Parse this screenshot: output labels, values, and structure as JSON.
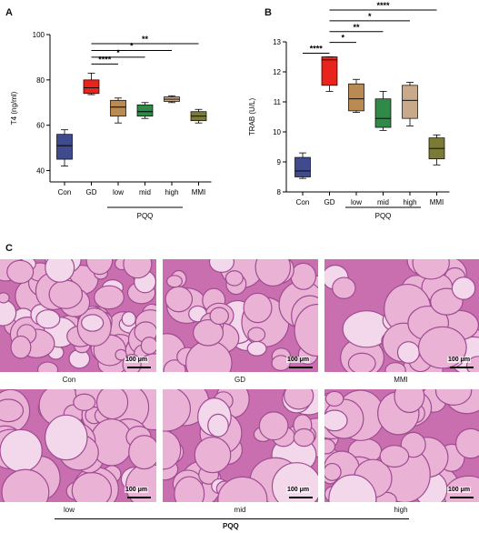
{
  "panels": {
    "a": "A",
    "b": "B",
    "c": "C"
  },
  "chart_data": [
    {
      "type": "box",
      "ylabel": "T4 (ng/ml)",
      "ylim": [
        35,
        100
      ],
      "yticks": [
        40,
        60,
        80,
        100
      ],
      "categories": [
        "Con",
        "GD",
        "low",
        "mid",
        "high",
        "MMI"
      ],
      "group_label": "PQQ",
      "boxes": [
        {
          "name": "Con",
          "min": 42,
          "q1": 45,
          "median": 51,
          "q3": 56,
          "max": 58,
          "color": "#3f4b8c"
        },
        {
          "name": "GD",
          "min": 73.5,
          "q1": 74,
          "median": 76.5,
          "q3": 80,
          "max": 83,
          "color": "#e8241c"
        },
        {
          "name": "low",
          "min": 61,
          "q1": 64,
          "median": 68,
          "q3": 71,
          "max": 72,
          "color": "#b98b53"
        },
        {
          "name": "mid",
          "min": 63,
          "q1": 64,
          "median": 66,
          "q3": 69,
          "max": 70,
          "color": "#2e8a46"
        },
        {
          "name": "high",
          "min": 70,
          "q1": 70.5,
          "median": 71.5,
          "q3": 72.5,
          "max": 73,
          "color": "#c8a98a"
        },
        {
          "name": "MMI",
          "min": 61,
          "q1": 62,
          "median": 64,
          "q3": 66,
          "max": 67,
          "color": "#7b7a36"
        }
      ],
      "significance": [
        {
          "from": "GD",
          "to": "low",
          "y": 87,
          "label": "****"
        },
        {
          "from": "GD",
          "to": "mid",
          "y": 90,
          "label": "*"
        },
        {
          "from": "GD",
          "to": "high",
          "y": 93,
          "label": "*"
        },
        {
          "from": "GD",
          "to": "MMI",
          "y": 96,
          "label": "**"
        }
      ]
    },
    {
      "type": "box",
      "ylabel": "TRAB (U/L)",
      "ylim": [
        8,
        13
      ],
      "yticks": [
        8,
        9,
        10,
        11,
        12,
        13
      ],
      "categories": [
        "Con",
        "GD",
        "low",
        "mid",
        "high",
        "MMI"
      ],
      "group_label": "PQQ",
      "boxes": [
        {
          "name": "Con",
          "min": 8.45,
          "q1": 8.5,
          "median": 8.7,
          "q3": 9.15,
          "max": 9.3,
          "color": "#3f4b8c"
        },
        {
          "name": "GD",
          "min": 11.35,
          "q1": 11.55,
          "median": 12.4,
          "q3": 12.5,
          "max": 12.5,
          "color": "#e8241c"
        },
        {
          "name": "low",
          "min": 10.65,
          "q1": 10.7,
          "median": 11.1,
          "q3": 11.6,
          "max": 11.75,
          "color": "#b98b53"
        },
        {
          "name": "mid",
          "min": 10.05,
          "q1": 10.15,
          "median": 10.45,
          "q3": 11.1,
          "max": 11.35,
          "color": "#2e8a46"
        },
        {
          "name": "high",
          "min": 10.2,
          "q1": 10.45,
          "median": 11.05,
          "q3": 11.55,
          "max": 11.65,
          "color": "#c8a98a"
        },
        {
          "name": "MMI",
          "min": 8.9,
          "q1": 9.1,
          "median": 9.45,
          "q3": 9.8,
          "max": 9.9,
          "color": "#7b7a36"
        }
      ],
      "significance": [
        {
          "from": "GD",
          "to": "low",
          "y": 12.98,
          "label": "*"
        },
        {
          "from": "GD",
          "to": "mid",
          "y": 13.34,
          "label": "**"
        },
        {
          "from": "GD",
          "to": "high",
          "y": 13.7,
          "label": "*"
        },
        {
          "from": "GD",
          "to": "MMI",
          "y": 14.06,
          "label": "****"
        },
        {
          "from": "Con",
          "to": "GD",
          "y": 12.62,
          "label": "****"
        }
      ]
    }
  ],
  "histology": {
    "scale_label": "100 μm",
    "images": [
      {
        "label": "Con"
      },
      {
        "label": "GD"
      },
      {
        "label": "MMI"
      },
      {
        "label": "low"
      },
      {
        "label": "mid"
      },
      {
        "label": "high"
      }
    ],
    "group_label": "PQQ"
  }
}
